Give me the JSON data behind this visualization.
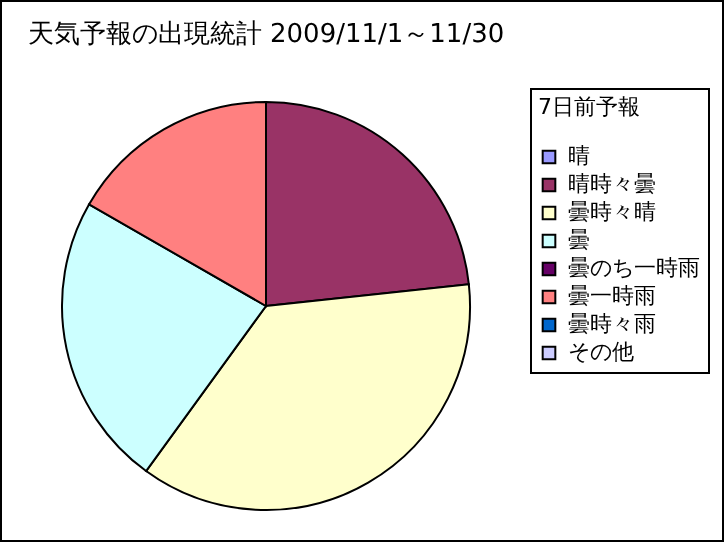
{
  "chart_data": {
    "type": "pie",
    "title": "天気予報の出現統計 2009/11/1～11/30",
    "legend_title": "7日前予報",
    "categories": [
      "晴",
      "晴時々曇",
      "曇時々晴",
      "曇",
      "曇のち一時雨",
      "曇一時雨",
      "曇時々雨",
      "その他"
    ],
    "values": [
      0,
      23.3,
      36.7,
      23.3,
      0,
      16.7,
      0,
      0
    ],
    "colors": [
      "#9999ff",
      "#993366",
      "#ffffcc",
      "#ccffff",
      "#660066",
      "#ff8080",
      "#0066cc",
      "#ccccff"
    ],
    "legend": "right"
  }
}
